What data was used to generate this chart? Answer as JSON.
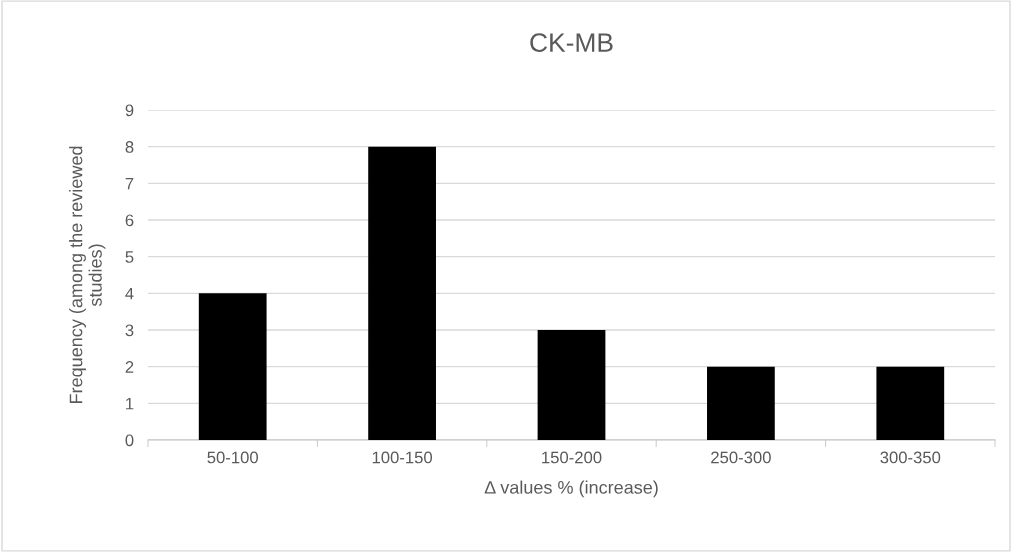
{
  "chart_data": {
    "type": "bar",
    "title": "CK-MB",
    "xlabel": "Δ values % (increase)",
    "ylabel": "Frequency (among the reviewed\nstudies)",
    "categories": [
      "50-100",
      "100-150",
      "150-200",
      "250-300",
      "300-350"
    ],
    "values": [
      4,
      8,
      3,
      2,
      2
    ],
    "color": "#000000",
    "ylim": [
      0,
      9
    ],
    "yticks": [
      0,
      1,
      2,
      3,
      4,
      5,
      6,
      7,
      8,
      9
    ],
    "grid": "y"
  }
}
